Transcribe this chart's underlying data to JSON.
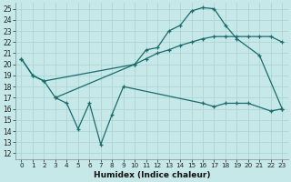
{
  "bg_color": "#c6e8e8",
  "grid_color": "#add4d4",
  "line_color": "#1a6b6b",
  "xlabel": "Humidex (Indice chaleur)",
  "xlim": [
    -0.5,
    23.5
  ],
  "ylim": [
    11.5,
    25.5
  ],
  "yticks": [
    12,
    13,
    14,
    15,
    16,
    17,
    18,
    19,
    20,
    21,
    22,
    23,
    24,
    25
  ],
  "xticks": [
    0,
    1,
    2,
    3,
    4,
    5,
    6,
    7,
    8,
    9,
    10,
    11,
    12,
    13,
    14,
    15,
    16,
    17,
    18,
    19,
    20,
    21,
    22,
    23
  ],
  "s1_x": [
    0,
    1,
    2,
    3,
    10,
    11,
    12,
    13,
    14,
    15,
    16,
    17,
    18,
    19,
    21,
    23
  ],
  "s1_y": [
    20.5,
    19.0,
    18.5,
    17.0,
    20.0,
    21.3,
    21.5,
    23.0,
    23.5,
    24.8,
    25.1,
    25.0,
    23.5,
    22.3,
    20.8,
    16.0
  ],
  "s2_x": [
    0,
    1,
    2,
    10,
    11,
    12,
    13,
    14,
    15,
    16,
    17,
    18,
    19,
    20,
    21,
    22,
    23
  ],
  "s2_y": [
    20.5,
    19.0,
    18.5,
    20.0,
    20.5,
    21.0,
    21.3,
    21.7,
    22.0,
    22.3,
    22.5,
    22.5,
    22.5,
    22.5,
    22.5,
    22.5,
    22.0
  ],
  "s3_x": [
    3,
    4,
    5,
    6,
    7,
    8,
    9,
    16,
    17,
    18,
    19,
    20,
    22,
    23
  ],
  "s3_y": [
    17.0,
    16.5,
    14.2,
    16.5,
    12.8,
    15.5,
    18.0,
    16.5,
    16.2,
    16.5,
    16.5,
    16.5,
    15.8,
    16.0
  ]
}
